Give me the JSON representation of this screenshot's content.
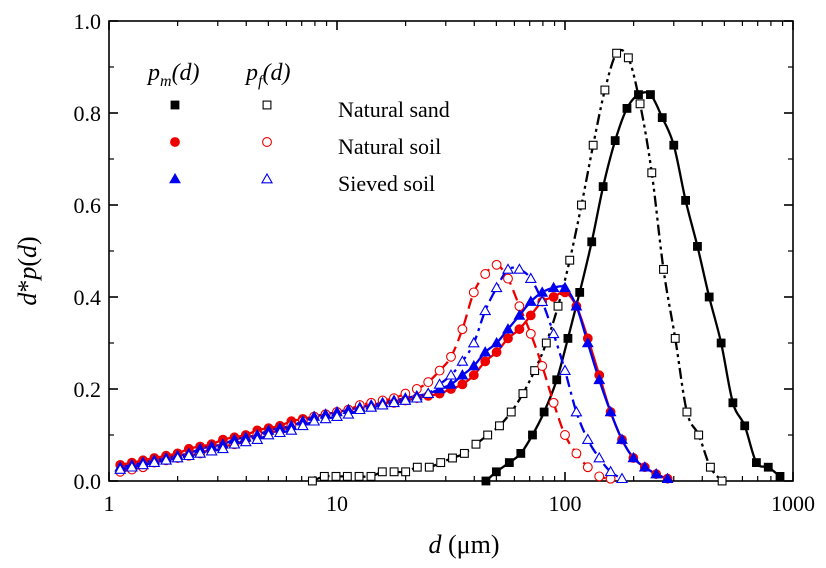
{
  "chart_data": {
    "type": "scatter",
    "x_scale": "log",
    "xlim": [
      1,
      1000
    ],
    "ylim": [
      0.0,
      1.0
    ],
    "xlabel": "d (μm)",
    "ylabel": "d*p(d)",
    "x_ticks": [
      1,
      10,
      100,
      1000
    ],
    "x_tick_labels": [
      "1",
      "10",
      "100",
      "1000"
    ],
    "y_ticks": [
      0.0,
      0.2,
      0.4,
      0.6,
      0.8,
      1.0
    ],
    "y_tick_labels": [
      "0.0",
      "0.2",
      "0.4",
      "0.6",
      "0.8",
      "1.0"
    ],
    "grid": false,
    "legend_position": "top-left",
    "legend_headers": {
      "measured": "p_m(d)",
      "fitted": "p_f(d)"
    },
    "series": [
      {
        "name": "Natural sand",
        "group": "pm",
        "color": "#000000",
        "marker": "square-filled",
        "line": "solid",
        "x": [
          45,
          50,
          57,
          64,
          72,
          81,
          92,
          103,
          116,
          131,
          147,
          166,
          187,
          210,
          237,
          267,
          300,
          338,
          381,
          429,
          484,
          545,
          614,
          691,
          779,
          877
        ],
        "y": [
          0.0,
          0.02,
          0.04,
          0.06,
          0.1,
          0.15,
          0.22,
          0.31,
          0.41,
          0.52,
          0.64,
          0.74,
          0.81,
          0.84,
          0.84,
          0.79,
          0.73,
          0.61,
          0.51,
          0.4,
          0.3,
          0.17,
          0.12,
          0.04,
          0.03,
          0.01
        ]
      },
      {
        "name": "Natural sand",
        "group": "pf",
        "color": "#000000",
        "marker": "square-open",
        "line": "dash-dot-dot",
        "x": [
          7.8,
          8.8,
          9.9,
          11.1,
          12.5,
          14.1,
          15.8,
          17.8,
          20.0,
          22.5,
          25.4,
          28.5,
          32.1,
          36.2,
          40.7,
          45.8,
          51.6,
          58.1,
          65.4,
          73.6,
          82.8,
          93.2,
          104.9,
          118.1,
          132.9,
          149.6,
          168.4,
          189.6,
          213.4,
          240.2,
          270.4,
          304.4,
          342.6,
          385.7,
          434.2,
          488.7
        ],
        "y": [
          0.0,
          0.01,
          0.01,
          0.01,
          0.01,
          0.01,
          0.02,
          0.02,
          0.02,
          0.03,
          0.03,
          0.04,
          0.05,
          0.06,
          0.08,
          0.1,
          0.12,
          0.15,
          0.19,
          0.24,
          0.3,
          0.38,
          0.48,
          0.6,
          0.73,
          0.85,
          0.93,
          0.92,
          0.82,
          0.67,
          0.46,
          0.31,
          0.15,
          0.1,
          0.03,
          0.0
        ]
      },
      {
        "name": "Natural soil",
        "group": "pm",
        "color": "#ee0000",
        "marker": "circle-filled",
        "line": "solid",
        "x": [
          1.12,
          1.26,
          1.41,
          1.58,
          1.78,
          2.0,
          2.24,
          2.51,
          2.82,
          3.16,
          3.55,
          3.98,
          4.47,
          5.01,
          5.62,
          6.31,
          7.08,
          7.94,
          8.91,
          10.0,
          11.22,
          12.59,
          14.13,
          15.85,
          17.78,
          19.95,
          22.39,
          25.12,
          28.18,
          31.62,
          35.48,
          39.81,
          44.67,
          50.12,
          56.23,
          63.1,
          70.79,
          79.43,
          89.13,
          100.0,
          112.2,
          125.9,
          141.3,
          158.5,
          177.8,
          199.5,
          223.9,
          251.2,
          281.8
        ],
        "y": [
          0.035,
          0.04,
          0.045,
          0.05,
          0.055,
          0.06,
          0.07,
          0.075,
          0.08,
          0.09,
          0.095,
          0.1,
          0.11,
          0.115,
          0.12,
          0.13,
          0.135,
          0.14,
          0.145,
          0.15,
          0.155,
          0.16,
          0.165,
          0.17,
          0.17,
          0.175,
          0.18,
          0.185,
          0.19,
          0.2,
          0.21,
          0.23,
          0.26,
          0.28,
          0.31,
          0.33,
          0.36,
          0.39,
          0.4,
          0.41,
          0.38,
          0.31,
          0.23,
          0.15,
          0.09,
          0.05,
          0.03,
          0.015,
          0.005
        ]
      },
      {
        "name": "Natural soil",
        "group": "pf",
        "color": "#ee0000",
        "marker": "circle-open",
        "line": "dashed",
        "x": [
          1.12,
          1.26,
          1.41,
          1.58,
          1.78,
          2.0,
          2.24,
          2.51,
          2.82,
          3.16,
          3.55,
          3.98,
          4.47,
          5.01,
          5.62,
          6.31,
          7.08,
          7.94,
          8.91,
          10.0,
          11.22,
          12.59,
          14.13,
          15.85,
          17.78,
          19.95,
          22.39,
          25.12,
          28.18,
          31.62,
          35.48,
          39.81,
          44.67,
          50.12,
          56.23,
          63.1,
          70.79,
          79.43,
          89.13,
          100.0,
          112.2,
          125.9,
          141.3,
          158.5
        ],
        "y": [
          0.02,
          0.025,
          0.03,
          0.04,
          0.045,
          0.05,
          0.055,
          0.06,
          0.07,
          0.075,
          0.08,
          0.09,
          0.1,
          0.105,
          0.11,
          0.12,
          0.13,
          0.14,
          0.145,
          0.15,
          0.155,
          0.165,
          0.17,
          0.175,
          0.18,
          0.19,
          0.2,
          0.215,
          0.24,
          0.27,
          0.33,
          0.41,
          0.45,
          0.47,
          0.44,
          0.38,
          0.32,
          0.25,
          0.17,
          0.1,
          0.06,
          0.03,
          0.01,
          0.005
        ]
      },
      {
        "name": "Sieved soil",
        "group": "pm",
        "color": "#0000ee",
        "marker": "triangle-filled",
        "line": "solid",
        "x": [
          1.12,
          1.26,
          1.41,
          1.58,
          1.78,
          2.0,
          2.24,
          2.51,
          2.82,
          3.16,
          3.55,
          3.98,
          4.47,
          5.01,
          5.62,
          6.31,
          7.08,
          7.94,
          8.91,
          10.0,
          11.22,
          12.59,
          14.13,
          15.85,
          17.78,
          19.95,
          22.39,
          25.12,
          28.18,
          31.62,
          35.48,
          39.81,
          44.67,
          50.12,
          56.23,
          63.1,
          70.79,
          79.43,
          89.13,
          100.0,
          112.2,
          125.9,
          141.3,
          158.5,
          177.8,
          199.5,
          223.9,
          251.2,
          281.8
        ],
        "y": [
          0.03,
          0.035,
          0.04,
          0.045,
          0.05,
          0.055,
          0.06,
          0.07,
          0.075,
          0.08,
          0.09,
          0.095,
          0.1,
          0.11,
          0.115,
          0.12,
          0.13,
          0.14,
          0.145,
          0.15,
          0.155,
          0.16,
          0.165,
          0.17,
          0.175,
          0.18,
          0.185,
          0.19,
          0.2,
          0.21,
          0.23,
          0.25,
          0.28,
          0.3,
          0.33,
          0.36,
          0.39,
          0.41,
          0.42,
          0.42,
          0.38,
          0.3,
          0.22,
          0.15,
          0.09,
          0.05,
          0.03,
          0.015,
          0.005
        ]
      },
      {
        "name": "Sieved soil",
        "group": "pf",
        "color": "#0000ee",
        "marker": "triangle-open",
        "line": "dash-dot",
        "x": [
          1.12,
          1.26,
          1.41,
          1.58,
          1.78,
          2.0,
          2.24,
          2.51,
          2.82,
          3.16,
          3.55,
          3.98,
          4.47,
          5.01,
          5.62,
          6.31,
          7.08,
          7.94,
          8.91,
          10.0,
          11.22,
          12.59,
          14.13,
          15.85,
          17.78,
          19.95,
          22.39,
          25.12,
          28.18,
          31.62,
          35.48,
          39.81,
          44.67,
          50.12,
          56.23,
          63.1,
          70.79,
          79.43,
          89.13,
          100.0,
          112.2,
          125.9,
          141.3,
          158.5,
          177.8
        ],
        "y": [
          0.025,
          0.03,
          0.035,
          0.04,
          0.045,
          0.05,
          0.055,
          0.06,
          0.065,
          0.07,
          0.08,
          0.085,
          0.09,
          0.1,
          0.105,
          0.11,
          0.12,
          0.13,
          0.135,
          0.14,
          0.145,
          0.155,
          0.16,
          0.165,
          0.17,
          0.175,
          0.18,
          0.19,
          0.21,
          0.23,
          0.26,
          0.3,
          0.37,
          0.42,
          0.46,
          0.46,
          0.44,
          0.39,
          0.32,
          0.24,
          0.15,
          0.09,
          0.05,
          0.02,
          0.005
        ]
      }
    ],
    "legend_entries": [
      "Natural sand",
      "Natural soil",
      "Sieved soil"
    ]
  }
}
